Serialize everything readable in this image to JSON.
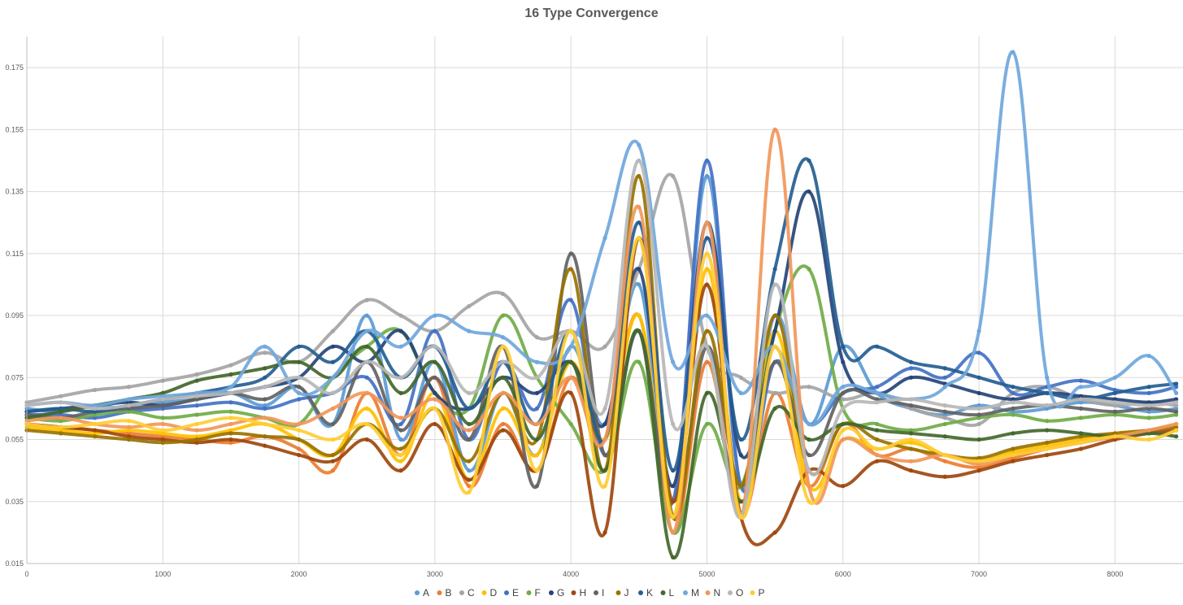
{
  "chart_data": {
    "type": "line",
    "title": "16 Type Convergence",
    "xlabel": "",
    "ylabel": "",
    "xlim": [
      0,
      8500
    ],
    "ylim": [
      0.015,
      0.185
    ],
    "x_ticks": [
      0,
      1000,
      2000,
      3000,
      4000,
      5000,
      6000,
      7000,
      8000
    ],
    "x_tick_labels": [
      "0",
      "1000",
      "2000",
      "3000",
      "4000",
      "5000",
      "6000",
      "7000",
      "8000"
    ],
    "y_ticks": [
      0.015,
      0.035,
      0.055,
      0.075,
      0.095,
      0.115,
      0.135,
      0.155,
      0.175
    ],
    "y_tick_labels": [
      "0.015",
      "0.035",
      "0.055",
      "0.075",
      "0.095",
      "0.115",
      "0.135",
      "0.155",
      "0.175"
    ],
    "grid": true,
    "legend_position": "bottom",
    "marker_style": "dense-points",
    "x": [
      0,
      250,
      500,
      750,
      1000,
      1250,
      1500,
      1750,
      2000,
      2250,
      2500,
      2750,
      3000,
      3250,
      3500,
      3750,
      4000,
      4250,
      4500,
      4750,
      5000,
      5250,
      5500,
      5750,
      6000,
      6250,
      6500,
      6750,
      7000,
      7250,
      7500,
      7750,
      8000,
      8250,
      8450
    ],
    "series": [
      {
        "name": "A",
        "color": "#5b9bd5",
        "values": [
          0.065,
          0.064,
          0.066,
          0.065,
          0.067,
          0.068,
          0.07,
          0.066,
          0.072,
          0.06,
          0.095,
          0.055,
          0.08,
          0.045,
          0.07,
          0.05,
          0.085,
          0.06,
          0.105,
          0.035,
          0.14,
          0.04,
          0.095,
          0.06,
          0.085,
          0.07,
          0.065,
          0.063,
          0.066,
          0.064,
          0.065,
          0.067,
          0.066,
          0.064,
          0.065
        ]
      },
      {
        "name": "B",
        "color": "#ed7d31",
        "values": [
          0.06,
          0.059,
          0.058,
          0.057,
          0.056,
          0.055,
          0.054,
          0.056,
          0.052,
          0.045,
          0.07,
          0.05,
          0.075,
          0.04,
          0.06,
          0.045,
          0.075,
          0.055,
          0.095,
          0.025,
          0.08,
          0.03,
          0.07,
          0.04,
          0.06,
          0.05,
          0.052,
          0.048,
          0.046,
          0.049,
          0.052,
          0.054,
          0.056,
          0.058,
          0.06
        ]
      },
      {
        "name": "C",
        "color": "#a5a5a5",
        "values": [
          0.067,
          0.069,
          0.071,
          0.072,
          0.074,
          0.076,
          0.079,
          0.083,
          0.08,
          0.09,
          0.1,
          0.095,
          0.09,
          0.098,
          0.102,
          0.088,
          0.09,
          0.085,
          0.11,
          0.14,
          0.085,
          0.075,
          0.07,
          0.072,
          0.068,
          0.07,
          0.065,
          0.062,
          0.06,
          0.07,
          0.072,
          0.068,
          0.066,
          0.067,
          0.066
        ]
      },
      {
        "name": "D",
        "color": "#ffc000",
        "values": [
          0.059,
          0.058,
          0.057,
          0.058,
          0.057,
          0.056,
          0.058,
          0.06,
          0.055,
          0.05,
          0.065,
          0.048,
          0.07,
          0.042,
          0.065,
          0.05,
          0.08,
          0.055,
          0.095,
          0.03,
          0.11,
          0.035,
          0.09,
          0.04,
          0.055,
          0.052,
          0.054,
          0.05,
          0.048,
          0.051,
          0.053,
          0.055,
          0.057,
          0.058,
          0.06
        ]
      },
      {
        "name": "E",
        "color": "#4472c4",
        "values": [
          0.063,
          0.063,
          0.062,
          0.064,
          0.065,
          0.066,
          0.067,
          0.065,
          0.068,
          0.07,
          0.075,
          0.06,
          0.09,
          0.055,
          0.08,
          0.065,
          0.1,
          0.05,
          0.09,
          0.035,
          0.145,
          0.04,
          0.08,
          0.06,
          0.07,
          0.072,
          0.078,
          0.075,
          0.083,
          0.07,
          0.072,
          0.074,
          0.071,
          0.07,
          0.072
        ]
      },
      {
        "name": "F",
        "color": "#70ad47",
        "values": [
          0.062,
          0.061,
          0.063,
          0.064,
          0.062,
          0.063,
          0.064,
          0.062,
          0.06,
          0.075,
          0.085,
          0.09,
          0.07,
          0.065,
          0.095,
          0.075,
          0.06,
          0.045,
          0.08,
          0.025,
          0.06,
          0.04,
          0.09,
          0.11,
          0.065,
          0.06,
          0.058,
          0.06,
          0.062,
          0.063,
          0.061,
          0.062,
          0.063,
          0.062,
          0.063
        ]
      },
      {
        "name": "G",
        "color": "#264478",
        "values": [
          0.064,
          0.065,
          0.066,
          0.067,
          0.066,
          0.068,
          0.07,
          0.072,
          0.075,
          0.085,
          0.08,
          0.09,
          0.07,
          0.065,
          0.075,
          0.07,
          0.08,
          0.06,
          0.11,
          0.04,
          0.125,
          0.05,
          0.09,
          0.135,
          0.08,
          0.07,
          0.075,
          0.073,
          0.07,
          0.068,
          0.07,
          0.069,
          0.068,
          0.067,
          0.068
        ]
      },
      {
        "name": "H",
        "color": "#9e480e",
        "values": [
          0.06,
          0.059,
          0.058,
          0.056,
          0.055,
          0.054,
          0.055,
          0.053,
          0.05,
          0.048,
          0.055,
          0.045,
          0.06,
          0.042,
          0.058,
          0.045,
          0.07,
          0.025,
          0.12,
          0.035,
          0.105,
          0.03,
          0.025,
          0.045,
          0.04,
          0.048,
          0.045,
          0.043,
          0.045,
          0.048,
          0.05,
          0.052,
          0.055,
          0.057,
          0.058
        ]
      },
      {
        "name": "I",
        "color": "#636363",
        "values": [
          0.063,
          0.062,
          0.064,
          0.065,
          0.066,
          0.068,
          0.07,
          0.068,
          0.072,
          0.06,
          0.08,
          0.058,
          0.075,
          0.055,
          0.085,
          0.04,
          0.115,
          0.05,
          0.09,
          0.03,
          0.085,
          0.04,
          0.08,
          0.05,
          0.07,
          0.068,
          0.066,
          0.064,
          0.063,
          0.065,
          0.066,
          0.065,
          0.064,
          0.065,
          0.064
        ]
      },
      {
        "name": "J",
        "color": "#997300",
        "values": [
          0.058,
          0.057,
          0.056,
          0.055,
          0.054,
          0.055,
          0.057,
          0.056,
          0.055,
          0.05,
          0.06,
          0.052,
          0.065,
          0.048,
          0.07,
          0.055,
          0.11,
          0.045,
          0.14,
          0.03,
          0.09,
          0.04,
          0.095,
          0.045,
          0.06,
          0.055,
          0.052,
          0.05,
          0.049,
          0.052,
          0.054,
          0.056,
          0.057,
          0.058,
          0.059
        ]
      },
      {
        "name": "K",
        "color": "#255e91",
        "values": [
          0.064,
          0.065,
          0.064,
          0.066,
          0.068,
          0.07,
          0.072,
          0.075,
          0.085,
          0.08,
          0.09,
          0.075,
          0.085,
          0.065,
          0.08,
          0.06,
          0.09,
          0.055,
          0.125,
          0.045,
          0.12,
          0.055,
          0.11,
          0.145,
          0.085,
          0.085,
          0.08,
          0.078,
          0.075,
          0.072,
          0.07,
          0.068,
          0.07,
          0.072,
          0.073
        ]
      },
      {
        "name": "L",
        "color": "#43682b",
        "values": [
          0.062,
          0.064,
          0.066,
          0.068,
          0.07,
          0.074,
          0.076,
          0.078,
          0.08,
          0.075,
          0.085,
          0.07,
          0.08,
          0.06,
          0.075,
          0.055,
          0.08,
          0.045,
          0.09,
          0.017,
          0.07,
          0.035,
          0.065,
          0.055,
          0.06,
          0.058,
          0.057,
          0.056,
          0.055,
          0.057,
          0.058,
          0.057,
          0.056,
          0.057,
          0.056
        ]
      },
      {
        "name": "M",
        "color": "#70a7dc",
        "values": [
          0.066,
          0.067,
          0.066,
          0.068,
          0.069,
          0.07,
          0.072,
          0.085,
          0.07,
          0.075,
          0.09,
          0.085,
          0.095,
          0.09,
          0.088,
          0.08,
          0.085,
          0.12,
          0.15,
          0.08,
          0.095,
          0.07,
          0.085,
          0.06,
          0.072,
          0.07,
          0.068,
          0.072,
          0.09,
          0.18,
          0.075,
          0.072,
          0.075,
          0.082,
          0.07
        ]
      },
      {
        "name": "N",
        "color": "#f1975a",
        "values": [
          0.061,
          0.062,
          0.06,
          0.059,
          0.06,
          0.058,
          0.06,
          0.062,
          0.06,
          0.065,
          0.07,
          0.062,
          0.068,
          0.058,
          0.07,
          0.06,
          0.075,
          0.055,
          0.13,
          0.025,
          0.125,
          0.03,
          0.155,
          0.04,
          0.055,
          0.05,
          0.048,
          0.05,
          0.047,
          0.05,
          0.052,
          0.054,
          0.056,
          0.058,
          0.06
        ]
      },
      {
        "name": "O",
        "color": "#b7b7b7",
        "values": [
          0.066,
          0.067,
          0.065,
          0.066,
          0.068,
          0.069,
          0.07,
          0.072,
          0.075,
          0.07,
          0.08,
          0.075,
          0.085,
          0.07,
          0.08,
          0.075,
          0.09,
          0.065,
          0.145,
          0.06,
          0.085,
          0.03,
          0.105,
          0.045,
          0.065,
          0.067,
          0.068,
          0.066,
          0.065,
          0.067,
          0.066,
          0.068,
          0.067,
          0.066,
          0.067
        ]
      },
      {
        "name": "P",
        "color": "#ffcd33",
        "values": [
          0.06,
          0.059,
          0.06,
          0.061,
          0.058,
          0.06,
          0.062,
          0.06,
          0.058,
          0.055,
          0.06,
          0.05,
          0.065,
          0.038,
          0.085,
          0.045,
          0.09,
          0.04,
          0.12,
          0.03,
          0.115,
          0.03,
          0.085,
          0.035,
          0.058,
          0.052,
          0.055,
          0.05,
          0.048,
          0.05,
          0.052,
          0.054,
          0.056,
          0.055,
          0.058
        ]
      }
    ]
  }
}
